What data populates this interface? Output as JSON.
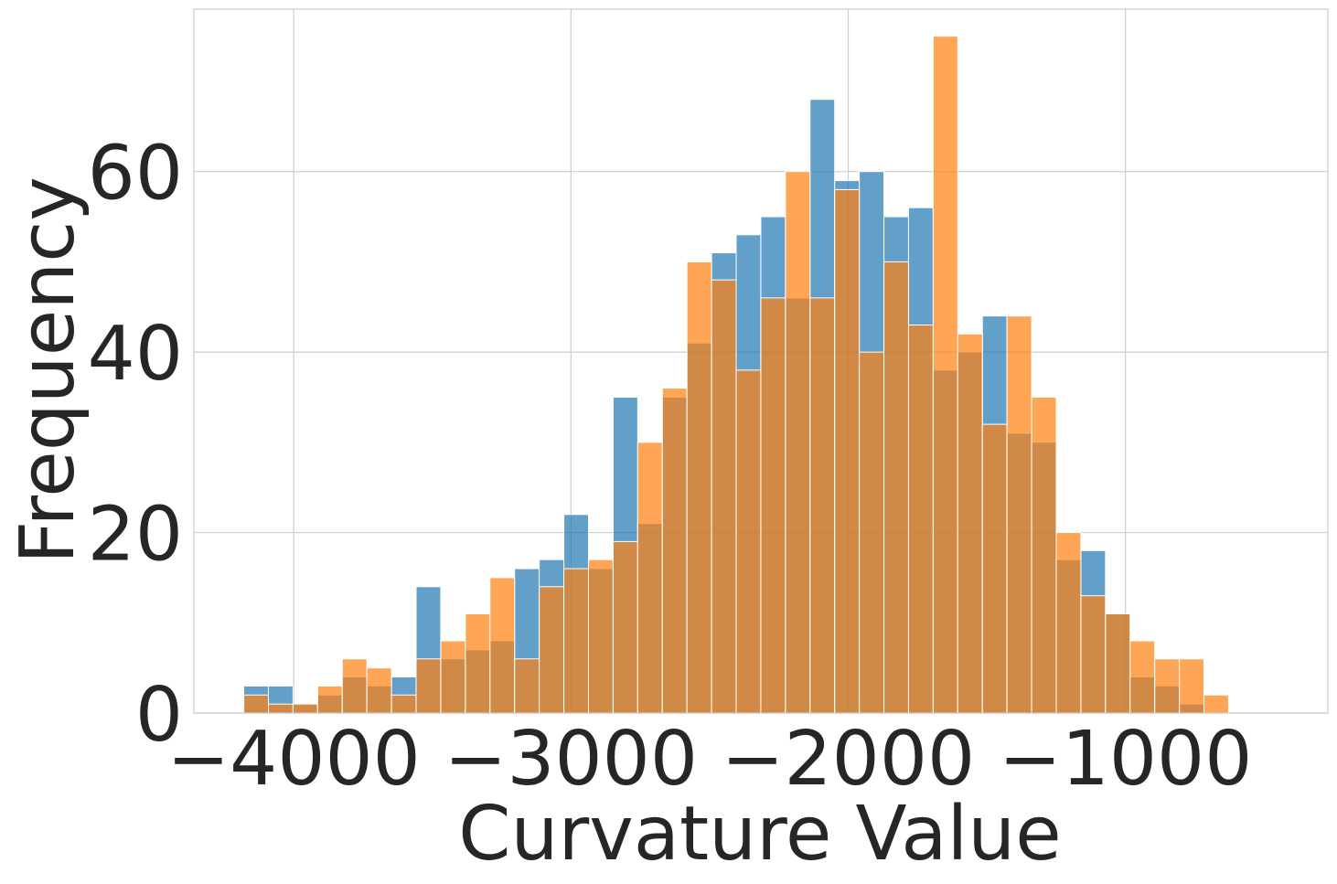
{
  "chart_data": {
    "type": "bar",
    "subtype": "overlaid-histogram",
    "title": "",
    "xlabel": "Curvature Value",
    "ylabel": "Frequency",
    "xlim": [
      -4360,
      -270
    ],
    "ylim": [
      0,
      78
    ],
    "xticks": [
      -4000,
      -3000,
      -2000,
      -1000
    ],
    "xtick_labels": [
      "−4000",
      "−3000",
      "−2000",
      "−1000"
    ],
    "yticks": [
      0,
      20,
      40,
      60
    ],
    "ytick_labels": [
      "0",
      "20",
      "40",
      "60"
    ],
    "grid": true,
    "legend": "none",
    "bin_start": -4180,
    "bin_width": 88.8,
    "series": [
      {
        "color": "#1f77b4",
        "values": [
          3,
          3,
          1,
          2,
          4,
          3,
          4,
          14,
          6,
          7,
          8,
          16,
          17,
          22,
          16,
          35,
          21,
          35,
          41,
          51,
          53,
          55,
          46,
          68,
          59,
          60,
          55,
          56,
          38,
          40,
          44,
          31,
          30,
          17,
          18,
          11,
          4,
          3,
          1,
          0
        ]
      },
      {
        "color": "#ff7f0e",
        "values": [
          2,
          1,
          1,
          3,
          6,
          5,
          2,
          6,
          8,
          11,
          15,
          6,
          14,
          16,
          17,
          19,
          30,
          36,
          50,
          48,
          38,
          46,
          60,
          46,
          58,
          40,
          50,
          43,
          75,
          42,
          32,
          44,
          35,
          20,
          13,
          11,
          8,
          6,
          6,
          2
        ]
      }
    ]
  }
}
